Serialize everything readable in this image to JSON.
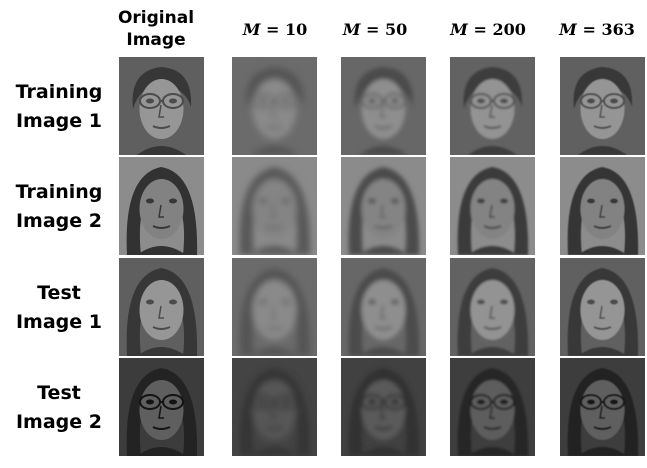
{
  "figure": {
    "column_headers": [
      {
        "id": "original",
        "label": "Original\nImage"
      },
      {
        "id": "m10",
        "var": "M",
        "op": "=",
        "value": "10"
      },
      {
        "id": "m50",
        "var": "M",
        "op": "=",
        "value": "50"
      },
      {
        "id": "m200",
        "var": "M",
        "op": "=",
        "value": "200"
      },
      {
        "id": "m363",
        "var": "M",
        "op": "=",
        "value": "363"
      }
    ],
    "rows": [
      {
        "label": "Training\nImage 1",
        "tone": "light",
        "glasses": true,
        "hair": "short-curly"
      },
      {
        "label": "Training\nImage 2",
        "tone": "medium",
        "glasses": false,
        "hair": "long"
      },
      {
        "label": "Test\nImage 1",
        "tone": "light",
        "glasses": false,
        "hair": "long-wavy"
      },
      {
        "label": "Test\nImage 2",
        "tone": "dark",
        "glasses": true,
        "hair": "curly"
      }
    ],
    "colors": {
      "background": "#ffffff",
      "text": "#000000"
    }
  }
}
